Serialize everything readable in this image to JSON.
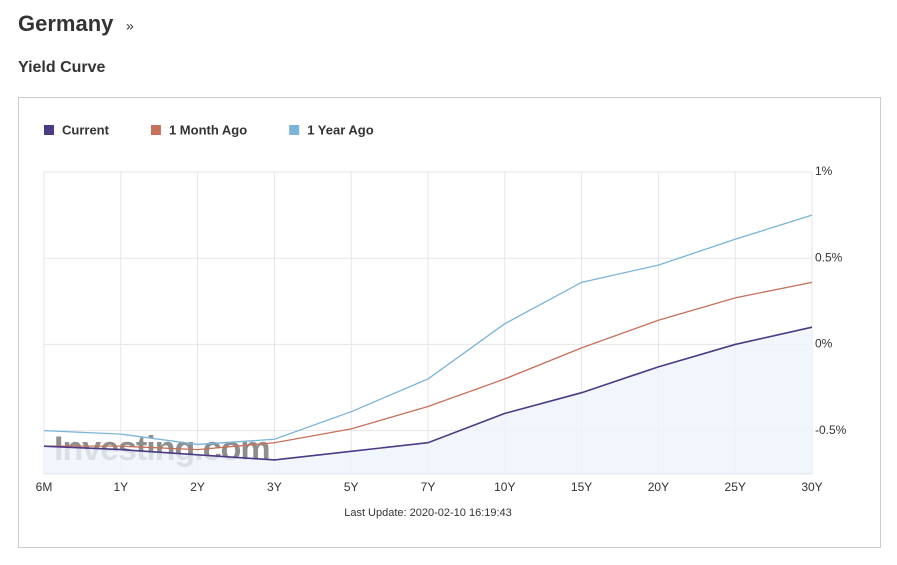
{
  "header": {
    "title": "Germany",
    "suffix": "»"
  },
  "chart_data": {
    "type": "line",
    "title": "Yield Curve",
    "categories": [
      "6M",
      "1Y",
      "2Y",
      "3Y",
      "5Y",
      "7Y",
      "10Y",
      "15Y",
      "20Y",
      "25Y",
      "30Y"
    ],
    "series": [
      {
        "name": "Current",
        "color": "#4b3a86",
        "area_color": "#eef4fc",
        "values": [
          -0.59,
          -0.61,
          -0.64,
          -0.67,
          -0.62,
          -0.57,
          -0.4,
          -0.28,
          -0.13,
          0.0,
          0.1
        ]
      },
      {
        "name": "1 Month Ago",
        "color": "#c8705a",
        "values": [
          -0.59,
          -0.59,
          -0.61,
          -0.57,
          -0.49,
          -0.36,
          -0.2,
          -0.02,
          0.14,
          0.27,
          0.36
        ]
      },
      {
        "name": "1 Year Ago",
        "color": "#7ab4d9",
        "values": [
          -0.5,
          -0.52,
          -0.58,
          -0.55,
          -0.39,
          -0.2,
          0.12,
          0.36,
          0.46,
          0.61,
          0.75
        ]
      }
    ],
    "ylim": [
      -0.75,
      1
    ],
    "yticks": [
      {
        "value": 1,
        "label": "1%"
      },
      {
        "value": 0.5,
        "label": "0.5%"
      },
      {
        "value": 0,
        "label": "0%"
      },
      {
        "value": -0.5,
        "label": "-0.5%"
      }
    ],
    "grid": true,
    "watermark": "Investing.com",
    "footnote": "Last Update: 2020-02-10 16:19:43"
  }
}
